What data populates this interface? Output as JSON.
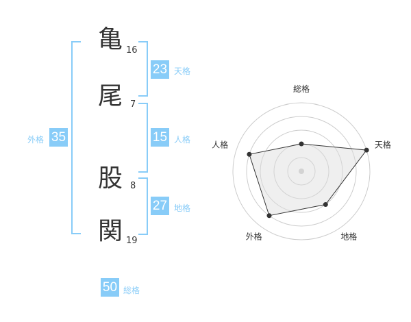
{
  "name": {
    "chars": [
      {
        "char": "亀",
        "strokes": "16"
      },
      {
        "char": "尾",
        "strokes": "7"
      },
      {
        "char": "股",
        "strokes": "8"
      },
      {
        "char": "関",
        "strokes": "19"
      }
    ]
  },
  "fortunes": {
    "tenkaku": {
      "value": "23",
      "label": "天格"
    },
    "jinkaku": {
      "value": "15",
      "label": "人格"
    },
    "chikaku": {
      "value": "27",
      "label": "地格"
    },
    "gaikaku": {
      "value": "35",
      "label": "外格"
    },
    "soukaku": {
      "value": "50",
      "label": "総格"
    }
  },
  "accent_color": "#88ccf8",
  "chart_data": {
    "type": "radar",
    "axes": [
      "総格",
      "天格",
      "地格",
      "外格",
      "人格"
    ],
    "values": [
      2,
      5,
      3,
      4,
      4
    ],
    "range": [
      0,
      5
    ],
    "rings": 5
  }
}
